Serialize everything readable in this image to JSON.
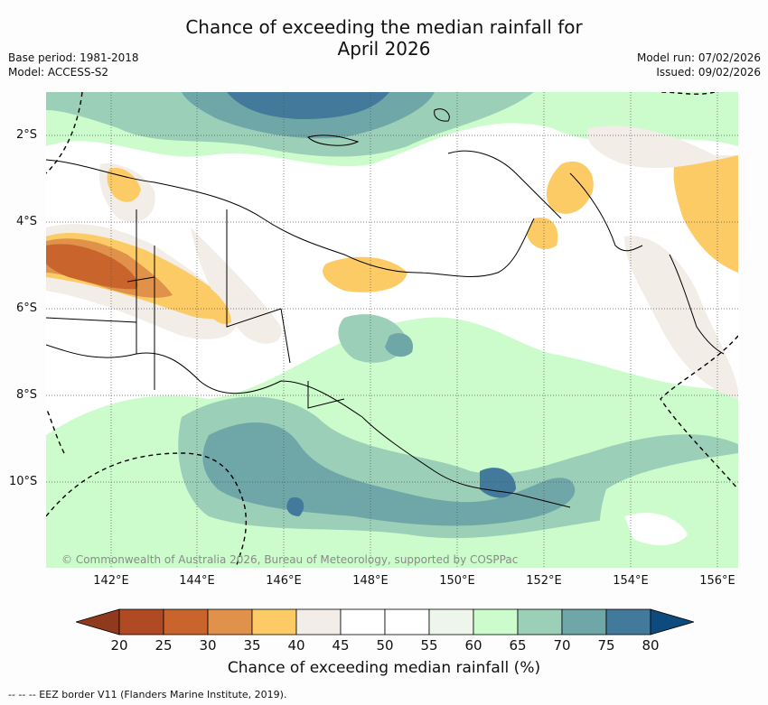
{
  "title": {
    "line1": "Chance of exceeding the median rainfall for",
    "line2": "April 2026"
  },
  "meta_left": {
    "base_period": "Base period: 1981-2018",
    "model": "Model: ACCESS-S2"
  },
  "meta_right": {
    "model_run": "Model run: 07/02/2026",
    "issued": "Issued: 09/02/2026"
  },
  "map": {
    "lat_labels": [
      "2°S",
      "4°S",
      "6°S",
      "8°S",
      "10°S"
    ],
    "lon_labels": [
      "142°E",
      "144°E",
      "146°E",
      "148°E",
      "150°E",
      "152°E",
      "154°E",
      "156°E"
    ],
    "copyright": "© Commonwealth of Australia 2026, Bureau of Meteorology, supported by COSPPac"
  },
  "colorbar": {
    "ticks": [
      "20",
      "25",
      "30",
      "35",
      "40",
      "45",
      "50",
      "55",
      "60",
      "65",
      "70",
      "75",
      "80"
    ],
    "colors": [
      "#b04a24",
      "#c9652c",
      "#e0914a",
      "#fdcb66",
      "#f2ede6",
      "#ffffff",
      "#ffffff",
      "#eef6ec",
      "#ccfccc",
      "#9bcfb8",
      "#6fa7a8",
      "#43799a"
    ],
    "low_extend_color": "#8f3a1d",
    "high_extend_color": "#0d4a7e",
    "label": "Chance of exceeding median rainfall (%)"
  },
  "eez_note": "--  --  -- EEZ border V11 (Flanders Marine Institute, 2019)."
}
